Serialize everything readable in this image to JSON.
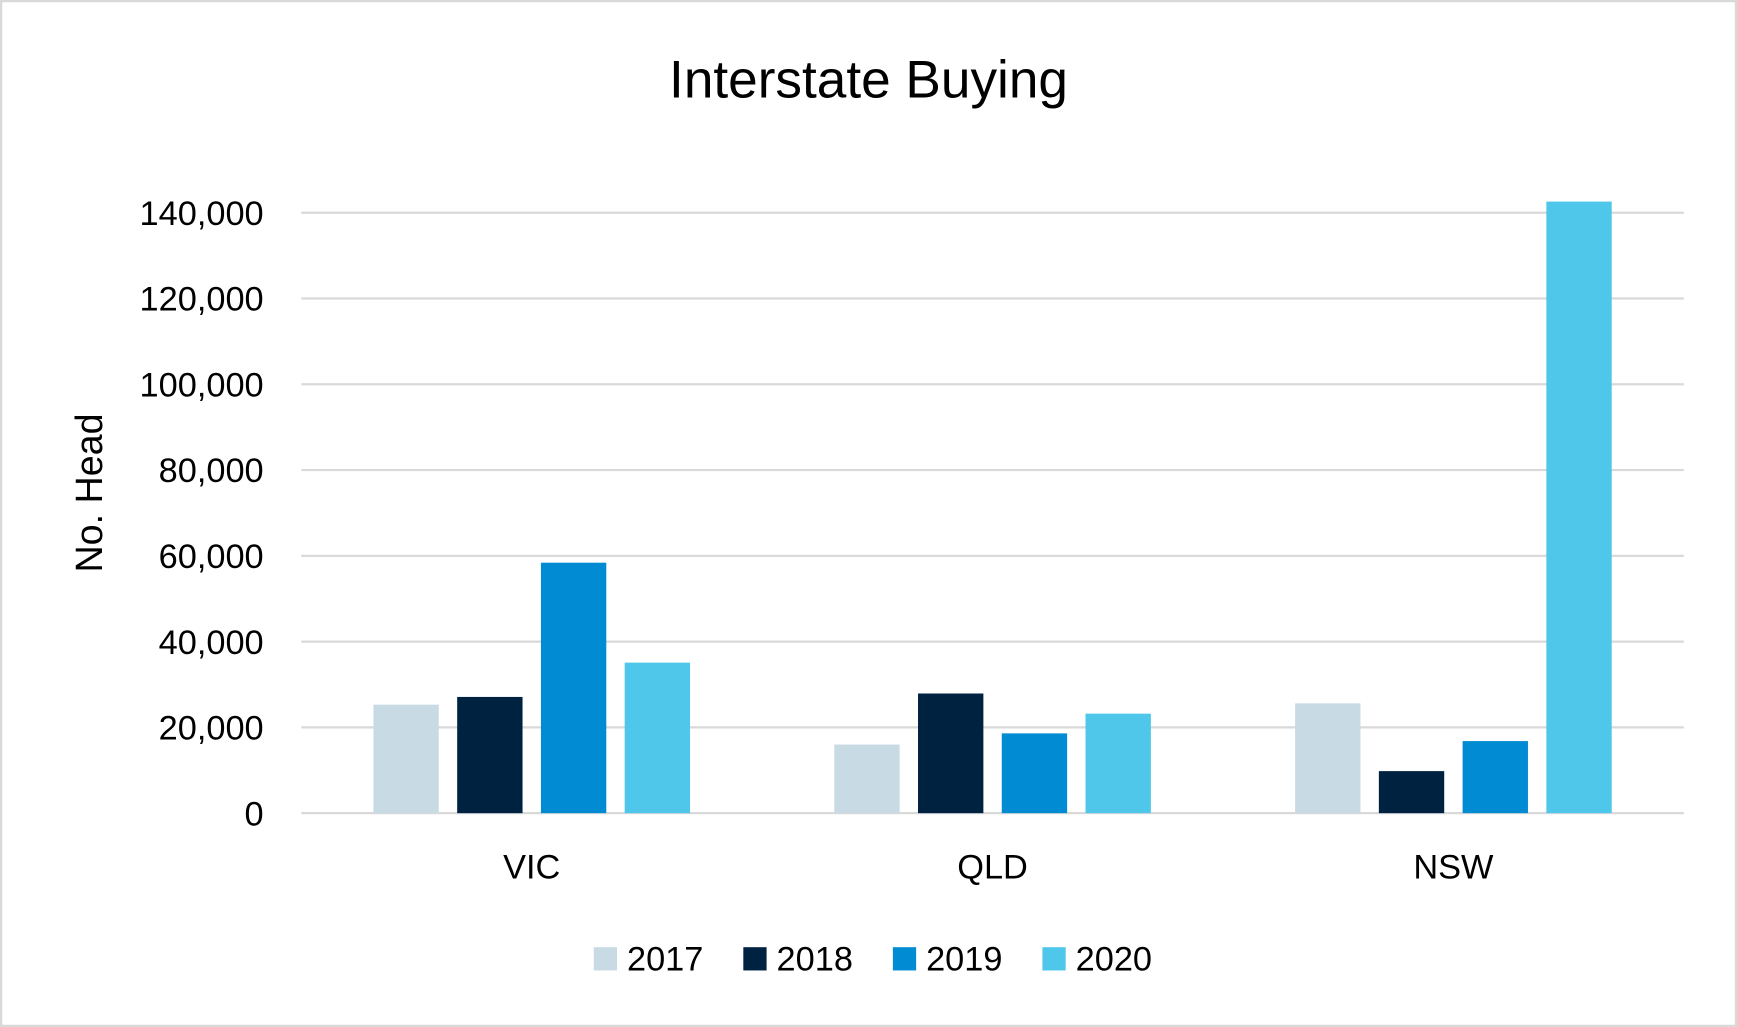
{
  "chart_data": {
    "type": "bar",
    "title": "Interstate Buying",
    "xlabel": "",
    "ylabel": "No. Head",
    "ylim": [
      0,
      140000
    ],
    "yticks": [
      0,
      20000,
      40000,
      60000,
      80000,
      100000,
      120000,
      140000
    ],
    "ytick_labels": [
      "0",
      "20,000",
      "40,000",
      "60,000",
      "80,000",
      "100,000",
      "120,000",
      "140,000"
    ],
    "grid": true,
    "legend_position": "bottom",
    "categories": [
      "VIC",
      "QLD",
      "NSW"
    ],
    "series": [
      {
        "name": "2017",
        "color": "#c8dbe4",
        "values": [
          25300,
          16000,
          25600
        ]
      },
      {
        "name": "2018",
        "color": "#002241",
        "values": [
          27100,
          27900,
          9800
        ]
      },
      {
        "name": "2019",
        "color": "#008bd2",
        "values": [
          58400,
          18600,
          16800
        ]
      },
      {
        "name": "2020",
        "color": "#4ec7ea",
        "values": [
          35100,
          23200,
          142600
        ]
      }
    ]
  }
}
